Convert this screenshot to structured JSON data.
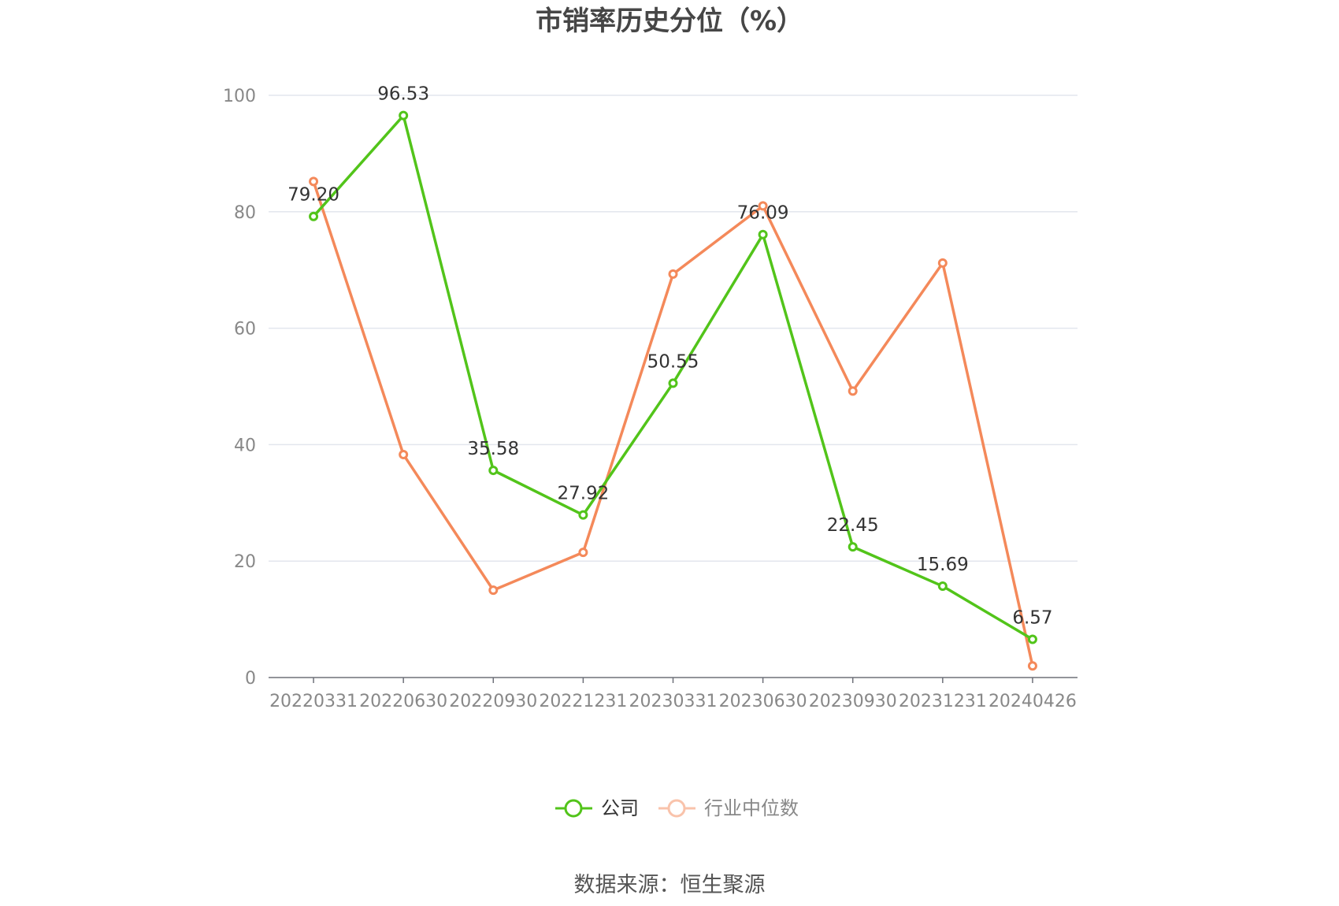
{
  "chart_data": {
    "type": "line",
    "title": "市销率历史分位（%）",
    "categories": [
      "20220331",
      "20220630",
      "20220930",
      "20221231",
      "20230331",
      "20230630",
      "20230930",
      "20231231",
      "20240426"
    ],
    "series": [
      {
        "name": "公司",
        "color": "#52c41a",
        "values": [
          79.2,
          96.53,
          35.58,
          27.92,
          50.55,
          76.09,
          22.45,
          15.69,
          6.57
        ],
        "labels": [
          "79.20",
          "96.53",
          "35.58",
          "27.92",
          "50.55",
          "76.09",
          "22.45",
          "15.69",
          "6.57"
        ]
      },
      {
        "name": "行业中位数",
        "color": "#f4895a",
        "values": [
          85.2,
          38.3,
          15.0,
          21.5,
          69.3,
          81.0,
          49.2,
          71.2,
          2.0
        ]
      }
    ],
    "ylim": [
      0,
      100
    ],
    "yticks": [
      "0",
      "20",
      "40",
      "60",
      "80",
      "100"
    ],
    "grid": true,
    "legend": "bottom-center"
  },
  "source": "数据来源：恒生聚源",
  "colors": {
    "grid": "#e3e6ee",
    "axis": "#6e7079",
    "legend_inactive": "#f9c3ab"
  }
}
